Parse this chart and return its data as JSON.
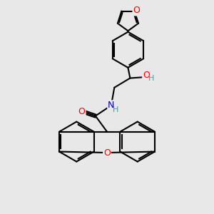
{
  "background_color": "#e8e8e8",
  "bond_color": "#000000",
  "bond_width": 1.5,
  "atom_colors": {
    "O": "#ff0000",
    "N": "#0000bb",
    "H_OH": "#4a9a9a",
    "H_NH": "#4a9a9a"
  },
  "font_size_atom": 9,
  "font_size_H": 8
}
